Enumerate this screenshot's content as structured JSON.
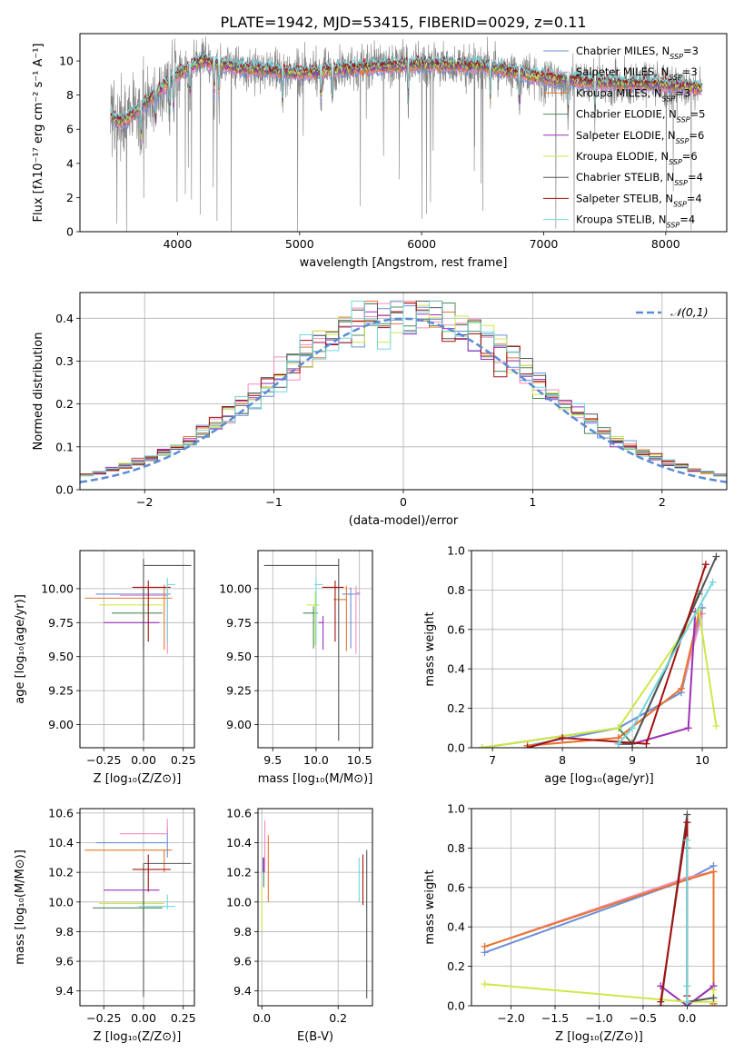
{
  "figure": {
    "title": "PLATE=1942, MJD=53415, FIBERID=0029, z=0.11"
  },
  "series": [
    {
      "name": "Chabrier MILES",
      "nssp": "3",
      "color": "#6a8fd8"
    },
    {
      "name": "Salpeter MILES",
      "nssp": "3",
      "color": "#f28ec0"
    },
    {
      "name": "Kroupa MILES",
      "nssp": "3",
      "color": "#e8762c"
    },
    {
      "name": "Chabrier ELODIE",
      "nssp": "5",
      "color": "#4f8a5a"
    },
    {
      "name": "Salpeter ELODIE",
      "nssp": "6",
      "color": "#9b30b9"
    },
    {
      "name": "Kroupa ELODIE",
      "nssp": "6",
      "color": "#cde84a"
    },
    {
      "name": "Chabrier STELIB",
      "nssp": "4",
      "color": "#555555"
    },
    {
      "name": "Salpeter STELIB",
      "nssp": "4",
      "color": "#a51010"
    },
    {
      "name": "Kroupa STELIB",
      "nssp": "4",
      "color": "#72d6dc"
    }
  ],
  "chart_data": [
    {
      "id": "spectrum",
      "type": "line",
      "xlabel": "wavelength [Angstrom, rest frame]",
      "ylabel": "Flux [fλ10⁻¹⁷ erg cm⁻² s⁻¹ A⁻¹]",
      "xlim": [
        3200,
        8500
      ],
      "ylim": [
        0,
        11.6
      ],
      "xticks": [
        4000,
        5000,
        6000,
        7000,
        8000
      ],
      "yticks": [
        0,
        2,
        4,
        6,
        8,
        10
      ],
      "data_color": "#808080",
      "data_x_range": [
        3450,
        8300
      ],
      "model_anchors": [
        [
          3450,
          6.7
        ],
        [
          3550,
          6.4
        ],
        [
          3700,
          7.3
        ],
        [
          3900,
          8.6
        ],
        [
          4000,
          9.2
        ],
        [
          4200,
          10.0
        ],
        [
          4500,
          9.6
        ],
        [
          5000,
          9.3
        ],
        [
          5500,
          9.6
        ],
        [
          6000,
          9.8
        ],
        [
          6500,
          9.7
        ],
        [
          7000,
          9.0
        ],
        [
          7500,
          8.7
        ],
        [
          8000,
          8.6
        ],
        [
          8300,
          8.4
        ]
      ],
      "grid": false
    },
    {
      "id": "residuals",
      "type": "histogram",
      "xlabel": "(data-model)/error",
      "ylabel": "Normed distribution",
      "xlim": [
        -2.5,
        2.5
      ],
      "ylim": [
        0,
        0.46
      ],
      "xticks": [
        -2,
        -1,
        0,
        1,
        2
      ],
      "yticks": [
        0.0,
        0.1,
        0.2,
        0.3,
        0.4
      ],
      "legend": "top-right",
      "reference_label": "𝒩(0,1)",
      "reference_color": "#5b8bd5",
      "bin_width": 0.1,
      "grid": true
    },
    {
      "id": "age_vs_Z",
      "type": "errorbar",
      "xlabel": "Z [log₁₀(Z/Z⊙)]",
      "ylabel": "age  [log₁₀(age/yr)]",
      "xlim": [
        -0.4,
        0.32
      ],
      "ylim": [
        8.83,
        10.28
      ],
      "xticks": [
        -0.25,
        0.0,
        0.25
      ],
      "yticks": [
        9.0,
        9.25,
        9.5,
        9.75,
        10.0
      ],
      "points": [
        {
          "s": 0,
          "x": 0.0,
          "xe": [
            0.3,
            0.17
          ],
          "y": 9.96,
          "ye": [
            0.42,
            0.05
          ]
        },
        {
          "s": 1,
          "x": 0.15,
          "xe": [
            0.3,
            0.0
          ],
          "y": 9.95,
          "ye": [
            0.43,
            0.05
          ]
        },
        {
          "s": 2,
          "x": 0.13,
          "xe": [
            0.5,
            0.05
          ],
          "y": 9.93,
          "ye": [
            0.38,
            0.1
          ]
        },
        {
          "s": 3,
          "x": 0.0,
          "xe": [
            0.2,
            0.12
          ],
          "y": 9.82,
          "ye": [
            0.26,
            0.05
          ]
        },
        {
          "s": 4,
          "x": 0.0,
          "xe": [
            0.25,
            0.1
          ],
          "y": 9.75,
          "ye": [
            0.2,
            0.05
          ]
        },
        {
          "s": 5,
          "x": 0.0,
          "xe": [
            0.28,
            0.13
          ],
          "y": 9.88,
          "ye": [
            0.3,
            0.1
          ]
        },
        {
          "s": 6,
          "x": 0.0,
          "xe": [
            0.0,
            0.3
          ],
          "y": 10.17,
          "ye": [
            1.29,
            0.05
          ]
        },
        {
          "s": 7,
          "x": 0.03,
          "xe": [
            0.1,
            0.14
          ],
          "y": 10.01,
          "ye": [
            0.4,
            0.05
          ]
        },
        {
          "s": 8,
          "x": 0.15,
          "xe": [
            0.0,
            0.05
          ],
          "y": 10.03,
          "ye": [
            0.43,
            0.05
          ]
        }
      ],
      "grid": true
    },
    {
      "id": "age_vs_mass",
      "type": "errorbar",
      "xlabel": "mass [log₁₀(M/M⊙)]",
      "ylabel": "",
      "xlim": [
        9.33,
        10.65
      ],
      "ylim": [
        8.83,
        10.28
      ],
      "xticks": [
        9.5,
        10.0,
        10.5
      ],
      "yticks": [
        9.0,
        9.25,
        9.5,
        9.75,
        10.0
      ],
      "points": [
        {
          "s": 0,
          "x": 10.4,
          "xe": [
            0.1,
            0.1
          ],
          "y": 9.96,
          "ye": [
            0.4,
            0.05
          ]
        },
        {
          "s": 1,
          "x": 10.46,
          "xe": [
            0.0,
            0.05
          ],
          "y": 9.97,
          "ye": [
            0.45,
            0.05
          ]
        },
        {
          "s": 2,
          "x": 10.35,
          "xe": [
            0.15,
            0.0
          ],
          "y": 9.92,
          "ye": [
            0.38,
            0.1
          ]
        },
        {
          "s": 3,
          "x": 9.97,
          "xe": [
            0.12,
            0.05
          ],
          "y": 9.82,
          "ye": [
            0.26,
            0.05
          ]
        },
        {
          "s": 4,
          "x": 10.08,
          "xe": [
            0.05,
            0.0
          ],
          "y": 9.75,
          "ye": [
            0.2,
            0.05
          ]
        },
        {
          "s": 5,
          "x": 9.99,
          "xe": [
            0.1,
            0.05
          ],
          "y": 9.88,
          "ye": [
            0.3,
            0.1
          ]
        },
        {
          "s": 6,
          "x": 10.26,
          "xe": [
            0.86,
            0.0
          ],
          "y": 10.17,
          "ye": [
            1.29,
            0.05
          ]
        },
        {
          "s": 7,
          "x": 10.22,
          "xe": [
            0.15,
            0.1
          ],
          "y": 10.01,
          "ye": [
            0.4,
            0.05
          ]
        },
        {
          "s": 8,
          "x": 10.0,
          "xe": [
            0.02,
            0.08
          ],
          "y": 10.03,
          "ye": [
            0.43,
            0.05
          ]
        }
      ],
      "grid": true
    },
    {
      "id": "mass_vs_Z",
      "type": "errorbar",
      "xlabel": "Z [log₁₀(Z/Z⊙)]",
      "ylabel": "mass [log₁₀(M/M⊙)]",
      "xlim": [
        -0.4,
        0.32
      ],
      "ylim": [
        9.3,
        10.63
      ],
      "xticks": [
        -0.25,
        0.0,
        0.25
      ],
      "yticks": [
        9.4,
        9.6,
        9.8,
        10.0,
        10.2,
        10.4,
        10.6
      ],
      "points": [
        {
          "s": 0,
          "x": 0.15,
          "xe": [
            0.45,
            0.0
          ],
          "y": 10.4,
          "ye": [
            0.1,
            0.1
          ]
        },
        {
          "s": 1,
          "x": 0.15,
          "xe": [
            0.3,
            0.0
          ],
          "y": 10.46,
          "ye": [
            0.0,
            0.1
          ]
        },
        {
          "s": 2,
          "x": 0.13,
          "xe": [
            0.5,
            0.05
          ],
          "y": 10.35,
          "ye": [
            0.15,
            0.0
          ]
        },
        {
          "s": 3,
          "x": 0.0,
          "xe": [
            0.32,
            0.12
          ],
          "y": 9.96,
          "ye": [
            0.12,
            0.05
          ]
        },
        {
          "s": 4,
          "x": 0.0,
          "xe": [
            0.25,
            0.1
          ],
          "y": 10.08,
          "ye": [
            0.05,
            0.0
          ]
        },
        {
          "s": 5,
          "x": 0.0,
          "xe": [
            0.28,
            0.13
          ],
          "y": 9.99,
          "ye": [
            0.1,
            0.05
          ]
        },
        {
          "s": 6,
          "x": 0.0,
          "xe": [
            0.0,
            0.3
          ],
          "y": 10.26,
          "ye": [
            0.9,
            0.0
          ]
        },
        {
          "s": 7,
          "x": 0.03,
          "xe": [
            0.1,
            0.14
          ],
          "y": 10.22,
          "ye": [
            0.15,
            0.1
          ]
        },
        {
          "s": 8,
          "x": 0.15,
          "xe": [
            0.18,
            0.05
          ],
          "y": 9.97,
          "ye": [
            0.02,
            0.08
          ]
        }
      ],
      "grid": true
    },
    {
      "id": "mass_vs_ebv",
      "type": "errorbar",
      "xlabel": "E(B-V)",
      "ylabel": "",
      "xlim": [
        -0.01,
        0.29
      ],
      "ylim": [
        9.3,
        10.63
      ],
      "xticks": [
        0.0,
        0.2
      ],
      "yticks": [
        9.4,
        9.6,
        9.8,
        10.0,
        10.2,
        10.4,
        10.6
      ],
      "points": [
        {
          "s": 0,
          "x": 0.003,
          "xe": [
            0,
            0
          ],
          "y": 10.25,
          "ye": [
            0.05,
            0.05
          ]
        },
        {
          "s": 1,
          "x": 0.008,
          "xe": [
            0,
            0
          ],
          "y": 10.35,
          "ye": [
            0.15,
            0.2
          ]
        },
        {
          "s": 2,
          "x": 0.017,
          "xe": [
            0,
            0
          ],
          "y": 10.2,
          "ye": [
            0.2,
            0.25
          ]
        },
        {
          "s": 3,
          "x": 0.005,
          "xe": [
            0,
            0
          ],
          "y": 10.2,
          "ye": [
            0.1,
            0.1
          ]
        },
        {
          "s": 4,
          "x": 0.005,
          "xe": [
            0,
            0
          ],
          "y": 10.25,
          "ye": [
            0.05,
            0.05
          ]
        },
        {
          "s": 5,
          "x": 0.0,
          "xe": [
            0,
            0
          ],
          "y": 10.0,
          "ye": [
            0.2,
            0.1
          ]
        },
        {
          "s": 6,
          "x": 0.275,
          "xe": [
            0,
            0
          ],
          "y": 9.85,
          "ye": [
            0.5,
            0.5
          ]
        },
        {
          "s": 7,
          "x": 0.265,
          "xe": [
            0,
            0
          ],
          "y": 10.15,
          "ye": [
            0.17,
            0.17
          ]
        },
        {
          "s": 8,
          "x": 0.255,
          "xe": [
            0,
            0
          ],
          "y": 10.15,
          "ye": [
            0.15,
            0.15
          ]
        }
      ],
      "grid": true
    },
    {
      "id": "weight_vs_age",
      "type": "line",
      "xlabel": "age  [log₁₀(age/yr)]",
      "ylabel": "mass weight",
      "xlim": [
        6.7,
        10.35
      ],
      "ylim": [
        0,
        1.0
      ],
      "xticks": [
        7,
        8,
        9,
        10
      ],
      "yticks": [
        0.0,
        0.2,
        0.4,
        0.6,
        0.8,
        1.0
      ],
      "series_points": [
        {
          "s": 0,
          "x": [
            7.5,
            8.8,
            9.7,
            10.0
          ],
          "y": [
            0.01,
            0.1,
            0.28,
            0.71
          ]
        },
        {
          "s": 1,
          "x": [
            7.5,
            8.8,
            9.7,
            10.0
          ],
          "y": [
            0.01,
            0.05,
            0.3,
            0.68
          ]
        },
        {
          "s": 2,
          "x": [
            7.5,
            8.8,
            9.7,
            9.95
          ],
          "y": [
            0.01,
            0.05,
            0.3,
            0.68
          ]
        },
        {
          "s": 3,
          "x": [
            6.85,
            8.8,
            9.0,
            9.95
          ],
          "y": [
            0.0,
            0.1,
            0.02,
            0.78
          ]
        },
        {
          "s": 4,
          "x": [
            8.8,
            9.0,
            9.8,
            9.9
          ],
          "y": [
            0.02,
            0.02,
            0.1,
            0.69
          ]
        },
        {
          "s": 5,
          "x": [
            6.85,
            8.8,
            9.95,
            10.2
          ],
          "y": [
            0.0,
            0.1,
            0.7,
            0.11
          ]
        },
        {
          "s": 6,
          "x": [
            8.8,
            9.0,
            10.2
          ],
          "y": [
            0.02,
            0.02,
            0.97
          ]
        },
        {
          "s": 7,
          "x": [
            7.5,
            8.0,
            9.2,
            10.05
          ],
          "y": [
            0.0,
            0.05,
            0.02,
            0.93
          ]
        },
        {
          "s": 8,
          "x": [
            8.8,
            9.0,
            10.15
          ],
          "y": [
            0.02,
            0.1,
            0.84
          ]
        }
      ],
      "grid": true
    },
    {
      "id": "weight_vs_Z",
      "type": "line",
      "xlabel": "Z [log₁₀(Z/Z⊙)]",
      "ylabel": "mass weight",
      "xlim": [
        -2.45,
        0.45
      ],
      "ylim": [
        0,
        1.0
      ],
      "xticks": [
        -2.0,
        -1.5,
        -1.0,
        -0.5,
        0.0
      ],
      "yticks": [
        0.0,
        0.2,
        0.4,
        0.6,
        0.8,
        1.0
      ],
      "series_points": [
        {
          "s": 0,
          "x": [
            -2.3,
            0.0,
            0.3
          ],
          "y": [
            0.27,
            0.64,
            0.71
          ]
        },
        {
          "s": 1,
          "x": [
            -2.3,
            0.0,
            0.3,
            0.3
          ],
          "y": [
            0.3,
            0.65,
            0.68,
            0.01
          ]
        },
        {
          "s": 2,
          "x": [
            -2.3,
            0.0,
            0.3,
            0.3
          ],
          "y": [
            0.3,
            0.64,
            0.68,
            0.01
          ]
        },
        {
          "s": 3,
          "x": [
            0.0,
            0.0,
            0.3
          ],
          "y": [
            0.8,
            0.0,
            0.1
          ]
        },
        {
          "s": 4,
          "x": [
            -0.3,
            0.0,
            0.3,
            0.3
          ],
          "y": [
            0.1,
            0.0,
            0.1,
            0.0
          ]
        },
        {
          "s": 5,
          "x": [
            -2.3,
            0.0,
            0.3,
            0.3
          ],
          "y": [
            0.11,
            0.02,
            0.02,
            0.08
          ]
        },
        {
          "s": 6,
          "x": [
            -0.3,
            0.0,
            0.0,
            0.3
          ],
          "y": [
            0.0,
            0.97,
            0.02,
            0.04
          ]
        },
        {
          "s": 7,
          "x": [
            -0.3,
            0.0,
            0.0
          ],
          "y": [
            0.02,
            0.93,
            0.05
          ]
        },
        {
          "s": 8,
          "x": [
            0.0,
            0.0,
            0.0
          ],
          "y": [
            0.84,
            0.1,
            0.02
          ]
        }
      ],
      "grid": true
    }
  ]
}
